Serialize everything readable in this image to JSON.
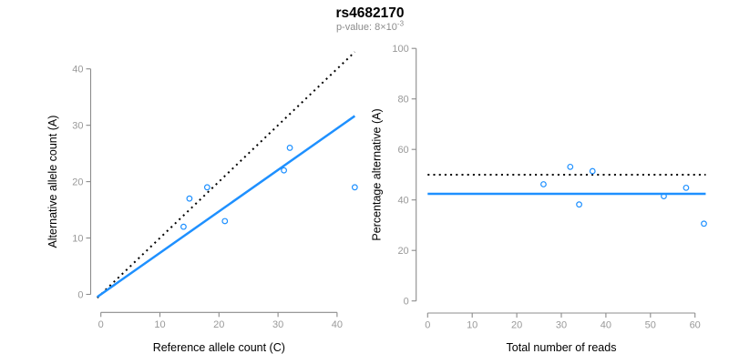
{
  "figure": {
    "title": "rs4682170",
    "subtitle": {
      "prefix": "p-value: 8",
      "times_base": "×10",
      "superscript": "-3"
    }
  },
  "colors": {
    "accent_blue": "#1E90FF",
    "identity_black": "#000000",
    "axis_gray": "#8c8c8c",
    "tick_label_gray": "#999999",
    "title_black": "#000000",
    "subtitle_gray": "#8c8c8c"
  },
  "chart_data": [
    {
      "type": "scatter",
      "panel": "left",
      "title": "rs4682170",
      "subtitle": "p-value: 8×10^-3",
      "xlabel": "Reference allele count (C)",
      "ylabel": "Alternative allele count (A)",
      "xlim": [
        0,
        43
      ],
      "ylim": [
        0,
        43
      ],
      "xticks": [
        0,
        10,
        20,
        30,
        40
      ],
      "yticks": [
        0,
        10,
        20,
        30,
        40
      ],
      "grid": false,
      "points": [
        {
          "x": 14,
          "y": 12
        },
        {
          "x": 15,
          "y": 17
        },
        {
          "x": 18,
          "y": 19
        },
        {
          "x": 21,
          "y": 13
        },
        {
          "x": 31,
          "y": 22
        },
        {
          "x": 32,
          "y": 26
        },
        {
          "x": 43,
          "y": 19
        }
      ],
      "lines": [
        {
          "name": "expected-50pct-identity",
          "kind": "abline",
          "slope": 1,
          "intercept": 0,
          "style": "dotted",
          "color": "#000000",
          "x_range": [
            -0.6,
            43
          ]
        },
        {
          "name": "fitted-allelic-ratio",
          "kind": "abline",
          "slope": 0.736,
          "intercept": 0,
          "style": "solid",
          "color": "#1E90FF",
          "x_range": [
            -0.6,
            43
          ]
        }
      ]
    },
    {
      "type": "scatter",
      "panel": "right",
      "xlabel": "Total number of reads",
      "ylabel": "Percentage alternative (A)",
      "xlim": [
        0,
        62.4
      ],
      "ylim": [
        0,
        100
      ],
      "xticks": [
        0,
        10,
        20,
        30,
        40,
        50,
        60
      ],
      "yticks": [
        0,
        20,
        40,
        60,
        80,
        100
      ],
      "grid": false,
      "points": [
        {
          "x": 26,
          "y": 46.2
        },
        {
          "x": 32,
          "y": 53.1
        },
        {
          "x": 34,
          "y": 38.2
        },
        {
          "x": 37,
          "y": 51.4
        },
        {
          "x": 53,
          "y": 41.5
        },
        {
          "x": 58,
          "y": 44.8
        },
        {
          "x": 62,
          "y": 30.6
        }
      ],
      "lines": [
        {
          "name": "expected-50pct",
          "kind": "hline",
          "y": 50,
          "style": "dotted",
          "color": "#000000",
          "x_range": [
            0,
            62.4
          ]
        },
        {
          "name": "mean-percentage",
          "kind": "hline",
          "y": 42.4,
          "style": "solid",
          "color": "#1E90FF",
          "x_range": [
            0,
            62.4
          ]
        }
      ]
    }
  ]
}
